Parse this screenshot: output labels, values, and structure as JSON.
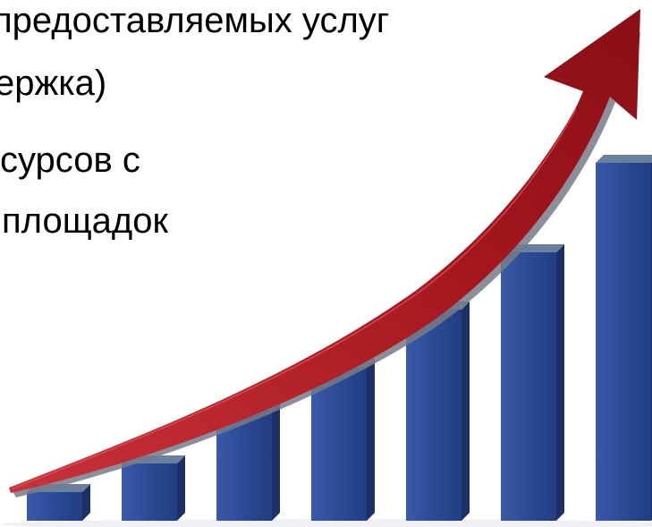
{
  "slide": {
    "text_lines": [
      "предоставляемых услуг",
      "ержка)",
      "сурсов с",
      "площадок"
    ]
  },
  "graphic": {
    "bar_levels_relative": [
      0.08,
      0.16,
      0.31,
      0.43,
      0.59,
      0.75,
      1.0
    ],
    "bar_color": "#2b4a96",
    "bar_side_color": "#1c2f66",
    "bar_top_color": "#6b7f9e",
    "arrow_color": "#a4161d",
    "arrow_shadow_color": "#6f7480"
  }
}
